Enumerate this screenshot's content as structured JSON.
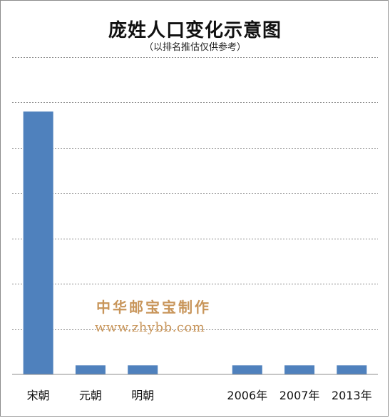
{
  "chart_data": {
    "type": "bar",
    "title": "庞姓人口变化示意图",
    "subtitle": "（以排名推估仅供参考）",
    "categories": [
      "宋朝",
      "元朝",
      "明朝",
      "",
      "2006年",
      "2007年",
      "2013年"
    ],
    "values": [
      58,
      2,
      2,
      0,
      2,
      2,
      2
    ],
    "ylim": [
      0,
      70
    ],
    "grid": true,
    "bar_color": "#4f81bd",
    "legend": "none"
  },
  "watermark": {
    "text": "中华邮宝宝制作",
    "url": "www.zhybb.com"
  },
  "colors": {
    "bar": "#4f81bd",
    "watermark": "#c8955a",
    "grid": "#8c8c8c"
  }
}
